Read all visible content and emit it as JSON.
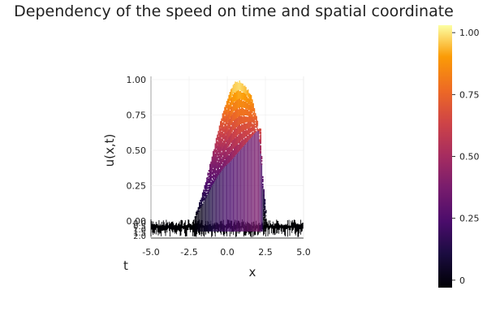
{
  "chart_data": {
    "type": "surface",
    "title": "Dependency of the speed on time and spatial coordinate",
    "xlabel": "x",
    "ylabel": "u(x,t)",
    "tlabel": "t",
    "xlim": [
      -5.0,
      5.0
    ],
    "zlim": [
      0.0,
      1.0
    ],
    "x_ticks": [
      "-5.0",
      "-2.5",
      "0.0",
      "2.5",
      "5.0"
    ],
    "x_tick_values": [
      -5.0,
      -2.5,
      0.0,
      2.5,
      5.0
    ],
    "z_ticks": [
      "0.00",
      "0.25",
      "0.50",
      "0.75",
      "1.00"
    ],
    "z_tick_values": [
      0.0,
      0.25,
      0.5,
      0.75,
      1.0
    ],
    "t_ticks": [
      "0.0",
      "0.5",
      "1.0",
      "1.5",
      "2.0"
    ],
    "colorbar": {
      "ticks": [
        "0",
        "0.25",
        "0.50",
        "0.75",
        "1.00"
      ],
      "tick_values": [
        0.0,
        0.25,
        0.5,
        0.75,
        1.0
      ],
      "range": [
        -0.03,
        1.03
      ],
      "colormap": "inferno"
    },
    "profiles": [
      {
        "t": 0.0,
        "x": [
          -5.0,
          -2.2,
          -1.8,
          -1.4,
          -1.0,
          -0.6,
          -0.2,
          0.2,
          0.6,
          1.0,
          1.4,
          1.8,
          2.2,
          2.4,
          5.0
        ],
        "u": [
          0.0,
          0.0,
          0.08,
          0.16,
          0.25,
          0.32,
          0.38,
          0.42,
          0.47,
          0.52,
          0.57,
          0.62,
          0.66,
          0.0,
          0.0
        ]
      },
      {
        "t": 2.0,
        "x": [
          -5.0,
          -2.2,
          -1.6,
          -1.0,
          -0.4,
          0.0,
          0.4,
          0.8,
          1.2,
          1.6,
          2.0,
          2.3,
          2.6,
          5.0
        ],
        "u": [
          0.0,
          0.0,
          0.2,
          0.45,
          0.72,
          0.86,
          0.97,
          0.99,
          0.95,
          0.88,
          0.7,
          0.35,
          0.0,
          0.0
        ]
      }
    ],
    "grid": true,
    "noise_floor": "approx 0.0"
  }
}
